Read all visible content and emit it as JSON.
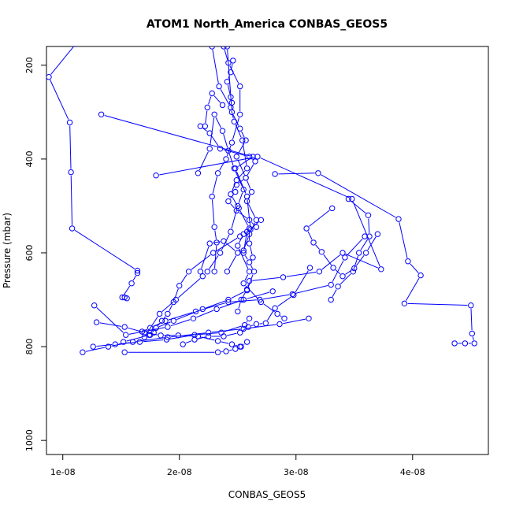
{
  "chart_data": {
    "type": "scatter",
    "title": "ATOM1 North_America CONBAS_GEOS5",
    "xlabel": "CONBAS_GEOS5",
    "ylabel": "Pressure (mbar)",
    "xlim": [
      8.6e-09,
      4.65e-08
    ],
    "ylim": [
      1030,
      160
    ],
    "y_reversed": true,
    "x_ticks": [
      1e-08,
      2e-08,
      3e-08,
      4e-08
    ],
    "x_tick_labels": [
      "1e-08",
      "2e-08",
      "3e-08",
      "4e-08"
    ],
    "y_ticks": [
      200,
      400,
      600,
      800,
      1000
    ],
    "y_tick_labels": [
      "200",
      "400",
      "600",
      "800",
      "1000"
    ],
    "grid": false,
    "legend": "none",
    "color": "#0000ff",
    "series": [
      {
        "x": [
          1.11e-08,
          8.8e-09,
          1.06e-08,
          1.07e-08,
          1.08e-08,
          1.64e-08,
          1.64e-08,
          1.59e-08,
          1.51e-08,
          1.53e-08,
          1.55e-08
        ],
        "y": [
          155,
          225,
          322,
          428,
          548,
          638,
          643,
          665,
          695,
          695,
          697
        ]
      },
      {
        "x": [
          1.33e-08,
          2.63e-08,
          2.48e-08,
          2.58e-08,
          2.61e-08,
          2.55e-08,
          2.5e-08,
          2.6e-08,
          2.55e-08,
          2.7e-08,
          2.84e-08,
          2.9e-08
        ],
        "y": [
          305,
          395,
          420,
          480,
          550,
          560,
          585,
          640,
          665,
          705,
          730,
          740
        ]
      },
      {
        "x": [
          1.8e-08,
          2.67e-08,
          3.48e-08,
          3.73e-08,
          3.4e-08,
          3.2e-08,
          2.89e-08,
          2.6e-08,
          2.58e-08,
          2.53e-08,
          2.5e-08
        ],
        "y": [
          435,
          395,
          485,
          635,
          600,
          640,
          652,
          660,
          678,
          700,
          725
        ]
      },
      {
        "x": [
          2.18e-08,
          2.26e-08,
          2.35e-08,
          2.6e-08,
          2.65e-08,
          2.57e-08,
          2.49e-08,
          2.48e-08,
          2.42e-08,
          2.49e-08,
          2.6e-08,
          2.66e-08
        ],
        "y": [
          330,
          345,
          378,
          395,
          405,
          440,
          455,
          470,
          490,
          510,
          530,
          545
        ]
      },
      {
        "x": [
          2.82e-08,
          3.19e-08,
          3.88e-08,
          3.96e-08,
          4.07e-08,
          3.93e-08,
          4.5e-08,
          4.51e-08,
          4.53e-08,
          4.45e-08,
          4.36e-08
        ],
        "y": [
          432,
          430,
          528,
          618,
          648,
          708,
          712,
          772,
          793,
          793,
          793
        ]
      },
      {
        "x": [
          2.41e-08,
          2.45e-08,
          2.52e-08,
          2.57e-08,
          2.49e-08,
          2.57e-08,
          2.62e-08,
          2.58e-08,
          2.66e-08,
          2.6e-08,
          2.55e-08
        ],
        "y": [
          160,
          300,
          335,
          360,
          395,
          440,
          470,
          490,
          530,
          560,
          595
        ]
      },
      {
        "x": [
          2.28e-08,
          2.34e-08,
          2.44e-08,
          2.47e-08,
          2.54e-08,
          2.58e-08,
          2.49e-08,
          2.44e-08,
          2.51e-08,
          2.6e-08,
          2.6e-08,
          2.63e-08
        ],
        "y": [
          160,
          245,
          290,
          320,
          360,
          420,
          445,
          475,
          505,
          548,
          580,
          610
        ]
      },
      {
        "x": [
          3.31e-08,
          3.09e-08,
          3.15e-08,
          3.22e-08,
          3.32e-08,
          3.4e-08,
          3.5e-08,
          3.6e-08,
          3.7e-08
        ],
        "y": [
          505,
          548,
          578,
          598,
          632,
          650,
          633,
          600,
          560
        ]
      },
      {
        "x": [
          3.59e-08,
          3.42e-08,
          3.3e-08,
          2.97e-08,
          2.69e-08,
          2.42e-08,
          2.14e-08,
          1.88e-08,
          1.75e-08,
          1.68e-08
        ],
        "y": [
          565,
          610,
          668,
          688,
          700,
          705,
          725,
          745,
          760,
          768
        ]
      },
      {
        "x": [
          3.45e-08,
          3.62e-08,
          3.63e-08,
          3.54e-08,
          3.49e-08,
          3.36e-08,
          3.3e-08
        ],
        "y": [
          485,
          520,
          565,
          600,
          640,
          672,
          700
        ]
      },
      {
        "x": [
          2.7e-08,
          2.58e-08,
          2.55e-08,
          2.6e-08,
          2.64e-08,
          2.58e-08,
          2.42e-08,
          2.2e-08,
          1.95e-08,
          1.8e-08,
          1.78e-08,
          1.74e-08
        ],
        "y": [
          530,
          555,
          600,
          620,
          640,
          680,
          700,
          720,
          745,
          760,
          770,
          775
        ]
      },
      {
        "x": [
          2.38e-08,
          2.42e-08,
          2.52e-08,
          2.52e-08,
          2.45e-08,
          2.4e-08,
          2.33e-08,
          2.28e-08,
          2.3e-08,
          2.32e-08,
          2.3e-08
        ],
        "y": [
          160,
          195,
          245,
          305,
          365,
          400,
          430,
          480,
          545,
          578,
          640
        ]
      },
      {
        "x": [
          3.12e-08,
          2.98e-08,
          2.82e-08,
          2.74e-08,
          2.66e-08,
          2.59e-08,
          2.52e-08,
          2.38e-08,
          2.25e-08,
          2.13e-08,
          2.03e-08
        ],
        "y": [
          632,
          690,
          718,
          750,
          752,
          758,
          770,
          778,
          778,
          785,
          795
        ]
      },
      {
        "x": [
          2.16e-08,
          2.26e-08,
          2.3e-08,
          2.37e-08,
          2.42e-08,
          2.47e-08,
          2.55e-08,
          2.5e-08,
          2.44e-08,
          2.35e-08,
          2.24e-08
        ],
        "y": [
          430,
          378,
          305,
          340,
          382,
          420,
          465,
          500,
          555,
          600,
          640
        ]
      },
      {
        "x": [
          2.41e-08,
          2.5e-08,
          2.38e-08,
          2.26e-08,
          2.18e-08,
          2.2e-08,
          1.97e-08,
          1.83e-08,
          1.7e-08
        ],
        "y": [
          640,
          600,
          575,
          580,
          640,
          650,
          700,
          730,
          780
        ]
      },
      {
        "x": [
          2.52e-08,
          2.29e-08,
          2.08e-08,
          2e-08,
          1.95e-08,
          1.9e-08,
          1.85e-08,
          1.8e-08,
          1.75e-08,
          1.52e-08
        ],
        "y": [
          565,
          600,
          640,
          670,
          705,
          730,
          745,
          760,
          775,
          790
        ]
      },
      {
        "x": [
          3.11e-08,
          2.86e-08,
          2.55e-08,
          2.25e-08,
          1.9e-08,
          1.6e-08,
          1.39e-08,
          1.17e-08
        ],
        "y": [
          740,
          752,
          762,
          770,
          780,
          790,
          800,
          812
        ]
      },
      {
        "x": [
          2.6e-08,
          2.56e-08,
          2.36e-08,
          2.13e-08,
          1.89e-08,
          1.66e-08,
          1.45e-08,
          1.26e-08
        ],
        "y": [
          740,
          754,
          770,
          775,
          785,
          790,
          795,
          800
        ]
      },
      {
        "x": [
          2.8e-08,
          2.55e-08,
          2.32e-08,
          2.12e-08,
          1.9e-08,
          1.54e-08,
          1.27e-08
        ],
        "y": [
          682,
          700,
          720,
          740,
          758,
          775,
          712
        ]
      },
      {
        "x": [
          1.29e-08,
          1.53e-08,
          1.7e-08,
          1.84e-08,
          1.99e-08,
          2.16e-08,
          2.33e-08,
          2.45e-08,
          2.52e-08
        ],
        "y": [
          748,
          758,
          770,
          776,
          776,
          778,
          788,
          795,
          800
        ]
      },
      {
        "x": [
          2.58e-08,
          2.53e-08,
          2.48e-08,
          2.4e-08,
          2.33e-08,
          1.53e-08
        ],
        "y": [
          790,
          800,
          805,
          810,
          812,
          812
        ]
      },
      {
        "x": [
          2.46e-08,
          2.44e-08,
          2.41e-08,
          2.44e-08,
          2.45e-08
        ],
        "y": [
          190,
          215,
          235,
          268,
          280
        ]
      },
      {
        "x": [
          2.22e-08,
          2.24e-08,
          2.28e-08,
          2.37e-08
        ],
        "y": [
          330,
          290,
          260,
          285
        ]
      }
    ]
  }
}
